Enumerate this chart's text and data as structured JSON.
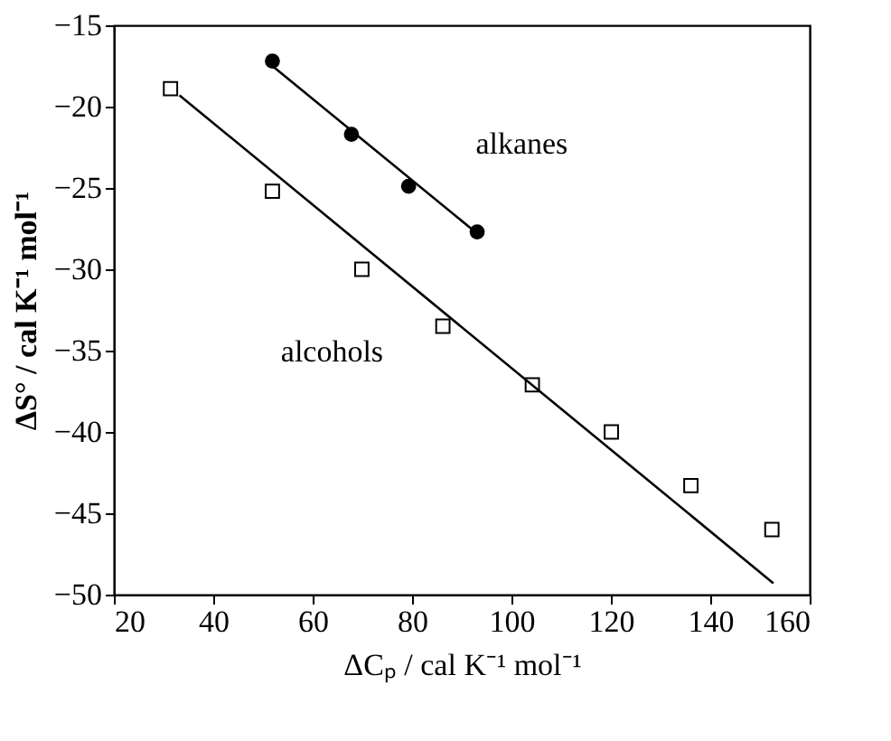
{
  "chart_data": {
    "type": "scatter",
    "xlabel": "ΔCₚ / cal K⁻¹ mol⁻¹",
    "ylabel": "ΔS° / cal K⁻¹ mol⁻¹",
    "xlim": [
      20,
      160
    ],
    "xticks": [
      20,
      40,
      60,
      80,
      100,
      120,
      140,
      160
    ],
    "ylim": [
      -50,
      -15
    ],
    "yticks": [
      -50,
      -45,
      -40,
      -35,
      -30,
      -25,
      -20,
      -15
    ],
    "grid": false,
    "series": [
      {
        "marker": "circle",
        "color": "#000000",
        "x": [
          51.9,
          67.8,
          79.3,
          93.1
        ],
        "values": [
          -17.2,
          -21.7,
          -24.9,
          -27.7
        ]
      },
      {
        "marker": "square",
        "color": "#000000",
        "x": [
          31.4,
          51.9,
          69.9,
          86.2,
          104.2,
          120.1,
          136.1,
          152.4
        ],
        "values": [
          -18.9,
          -25.2,
          -30.0,
          -33.5,
          -37.1,
          -40.0,
          -43.3,
          -46.0
        ]
      },
      {
        "type": "line",
        "line_style": "solid",
        "color": "#000000",
        "x": [
          51.9,
          93.1
        ],
        "values": [
          -17.5,
          -27.8
        ]
      },
      {
        "type": "line",
        "line_style": "solid",
        "color": "#000000",
        "x": [
          33.2,
          152.7
        ],
        "values": [
          -19.3,
          -49.3
        ]
      }
    ],
    "annotations": [
      "alkanes",
      "alcohols"
    ]
  }
}
